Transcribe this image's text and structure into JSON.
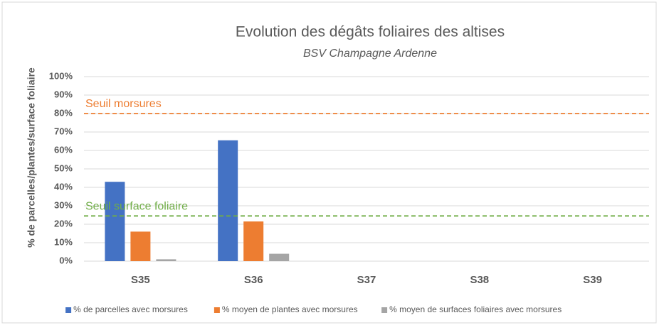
{
  "chart_data": {
    "type": "bar",
    "title": "Evolution des dégâts foliaires des altises",
    "subtitle": "BSV Champagne Ardenne",
    "y_label": "% de parcelles/plantes/surface foliaire",
    "categories": [
      "S35",
      "S36",
      "S37",
      "S38",
      "S39"
    ],
    "series": [
      {
        "name": "% de parcelles avec morsures",
        "color": "#4472c4",
        "values": [
          43,
          65.5,
          null,
          null,
          null
        ]
      },
      {
        "name": "% moyen de plantes avec morsures",
        "color": "#ed7d31",
        "values": [
          16,
          21.5,
          null,
          null,
          null
        ]
      },
      {
        "name": "% moyen de surfaces foliaires avec morsures",
        "color": "#a5a5a5",
        "values": [
          1,
          4,
          null,
          null,
          null
        ]
      }
    ],
    "thresholds": [
      {
        "label": "Seuil morsures",
        "value": 80,
        "color": "#ed7d31"
      },
      {
        "label": "Seuil surface foliaire",
        "value": 24.5,
        "color": "#70ad47"
      }
    ],
    "ylim": [
      0,
      100
    ],
    "yticks": [
      {
        "value": 0,
        "label": "0%"
      },
      {
        "value": 10,
        "label": "10%"
      },
      {
        "value": 20,
        "label": "20%"
      },
      {
        "value": 30,
        "label": "30%"
      },
      {
        "value": 40,
        "label": "40%"
      },
      {
        "value": 50,
        "label": "50%"
      },
      {
        "value": 60,
        "label": "60%"
      },
      {
        "value": 70,
        "label": "70%"
      },
      {
        "value": 80,
        "label": "80%"
      },
      {
        "value": 90,
        "label": "90%"
      },
      {
        "value": 100,
        "label": "100%"
      }
    ],
    "grid": true,
    "legend": "bottom"
  }
}
